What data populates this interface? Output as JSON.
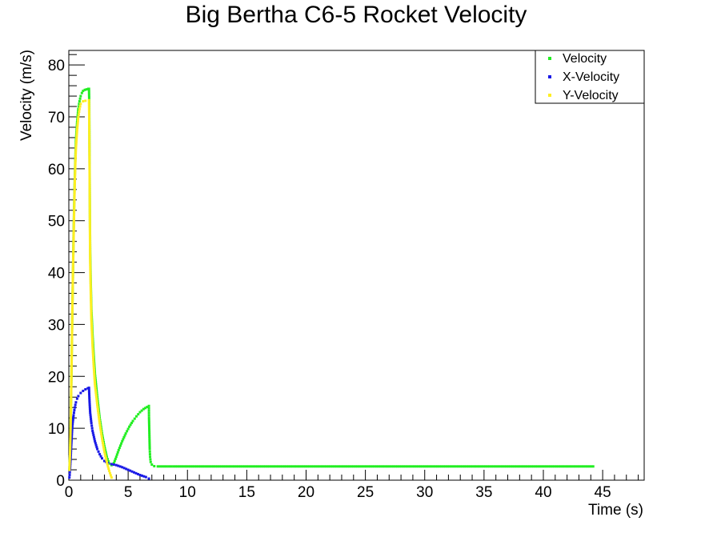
{
  "chart_data": {
    "type": "scatter",
    "title": "Big Bertha C6-5 Rocket Velocity",
    "xlabel": "Time (s)",
    "ylabel": "Velocity (m/s)",
    "xlim": [
      0,
      48.5
    ],
    "ylim": [
      0,
      82.8
    ],
    "x_ticks": [
      0,
      5,
      10,
      15,
      20,
      25,
      30,
      35,
      40,
      45
    ],
    "y_ticks": [
      0,
      10,
      20,
      30,
      40,
      50,
      60,
      70,
      80
    ],
    "grid": false,
    "legend_position": "top-right",
    "series": [
      {
        "name": "Velocity",
        "color": "#22ee22",
        "points": [
          [
            0.05,
            2
          ],
          [
            0.1,
            5
          ],
          [
            0.15,
            10
          ],
          [
            0.2,
            17
          ],
          [
            0.25,
            25
          ],
          [
            0.3,
            33
          ],
          [
            0.35,
            40
          ],
          [
            0.4,
            47
          ],
          [
            0.45,
            53
          ],
          [
            0.5,
            58
          ],
          [
            0.55,
            62
          ],
          [
            0.6,
            65.5
          ],
          [
            0.7,
            69
          ],
          [
            0.8,
            71.5
          ],
          [
            0.9,
            73
          ],
          [
            1.0,
            74
          ],
          [
            1.1,
            74.6
          ],
          [
            1.2,
            75
          ],
          [
            1.35,
            75.2
          ],
          [
            1.5,
            75.3
          ],
          [
            1.65,
            75.4
          ],
          [
            1.7,
            75.4
          ],
          [
            1.72,
            73
          ],
          [
            1.74,
            65
          ],
          [
            1.76,
            58
          ],
          [
            1.78,
            50
          ],
          [
            1.8,
            44
          ],
          [
            1.85,
            38
          ],
          [
            1.9,
            33
          ],
          [
            2.0,
            28
          ],
          [
            2.1,
            24
          ],
          [
            2.2,
            20.5
          ],
          [
            2.4,
            16
          ],
          [
            2.6,
            12
          ],
          [
            2.8,
            9
          ],
          [
            3.0,
            6.5
          ],
          [
            3.2,
            4.5
          ],
          [
            3.4,
            3.2
          ],
          [
            3.6,
            2.9
          ],
          [
            3.8,
            3.3
          ],
          [
            4.0,
            4.5
          ],
          [
            4.2,
            5.8
          ],
          [
            4.5,
            7.5
          ],
          [
            4.8,
            9
          ],
          [
            5.1,
            10.3
          ],
          [
            5.4,
            11.4
          ],
          [
            5.7,
            12.3
          ],
          [
            6.0,
            13.1
          ],
          [
            6.3,
            13.7
          ],
          [
            6.6,
            14.1
          ],
          [
            6.75,
            14.3
          ],
          [
            6.76,
            12
          ],
          [
            6.78,
            10
          ],
          [
            6.8,
            8
          ],
          [
            6.82,
            6
          ],
          [
            6.85,
            4.5
          ],
          [
            6.9,
            3.5
          ],
          [
            7.0,
            3.0
          ],
          [
            7.2,
            2.7
          ],
          [
            7.5,
            2.65
          ],
          [
            9,
            2.65
          ],
          [
            12,
            2.65
          ],
          [
            15,
            2.65
          ],
          [
            18,
            2.65
          ],
          [
            21,
            2.65
          ],
          [
            24,
            2.65
          ],
          [
            27,
            2.65
          ],
          [
            30,
            2.65
          ],
          [
            33,
            2.65
          ],
          [
            36,
            2.65
          ],
          [
            39,
            2.65
          ],
          [
            42,
            2.65
          ],
          [
            44.2,
            2.65
          ]
        ]
      },
      {
        "name": "X-Velocity",
        "color": "#1a1ae6",
        "points": [
          [
            0.05,
            0.5
          ],
          [
            0.1,
            2
          ],
          [
            0.15,
            4
          ],
          [
            0.2,
            6.5
          ],
          [
            0.25,
            8.5
          ],
          [
            0.3,
            10.5
          ],
          [
            0.4,
            12.5
          ],
          [
            0.5,
            14
          ],
          [
            0.6,
            15
          ],
          [
            0.7,
            15.7
          ],
          [
            0.8,
            16.2
          ],
          [
            1.0,
            16.8
          ],
          [
            1.2,
            17.2
          ],
          [
            1.4,
            17.5
          ],
          [
            1.6,
            17.7
          ],
          [
            1.7,
            17.8
          ],
          [
            1.75,
            15
          ],
          [
            1.8,
            13
          ],
          [
            1.9,
            11
          ],
          [
            2.0,
            9.5
          ],
          [
            2.2,
            7.5
          ],
          [
            2.4,
            6
          ],
          [
            2.6,
            5
          ],
          [
            2.8,
            4.2
          ],
          [
            3.0,
            3.7
          ],
          [
            3.3,
            3.3
          ],
          [
            3.6,
            3.1
          ],
          [
            4.0,
            2.9
          ],
          [
            4.5,
            2.5
          ],
          [
            5.0,
            2.0
          ],
          [
            5.5,
            1.5
          ],
          [
            6.0,
            1.0
          ],
          [
            6.5,
            0.6
          ],
          [
            6.75,
            0.3
          ]
        ]
      },
      {
        "name": "Y-Velocity",
        "color": "#ffee22",
        "points": [
          [
            0.05,
            2
          ],
          [
            0.1,
            5
          ],
          [
            0.15,
            10
          ],
          [
            0.2,
            17
          ],
          [
            0.25,
            25
          ],
          [
            0.3,
            33
          ],
          [
            0.35,
            40
          ],
          [
            0.4,
            46
          ],
          [
            0.45,
            52
          ],
          [
            0.5,
            57
          ],
          [
            0.55,
            61
          ],
          [
            0.6,
            64
          ],
          [
            0.7,
            67.5
          ],
          [
            0.8,
            70
          ],
          [
            0.9,
            71.5
          ],
          [
            1.0,
            72.5
          ],
          [
            1.2,
            73
          ],
          [
            1.4,
            73.1
          ],
          [
            1.7,
            73.2
          ],
          [
            1.72,
            70
          ],
          [
            1.74,
            63
          ],
          [
            1.76,
            56
          ],
          [
            1.78,
            48
          ],
          [
            1.8,
            42
          ],
          [
            1.85,
            36
          ],
          [
            1.9,
            31
          ],
          [
            2.0,
            26
          ],
          [
            2.1,
            22
          ],
          [
            2.2,
            18.5
          ],
          [
            2.4,
            14.5
          ],
          [
            2.6,
            11
          ],
          [
            2.8,
            8
          ],
          [
            3.0,
            5.5
          ],
          [
            3.2,
            3.5
          ],
          [
            3.4,
            1.8
          ],
          [
            3.6,
            0.5
          ]
        ]
      }
    ]
  }
}
